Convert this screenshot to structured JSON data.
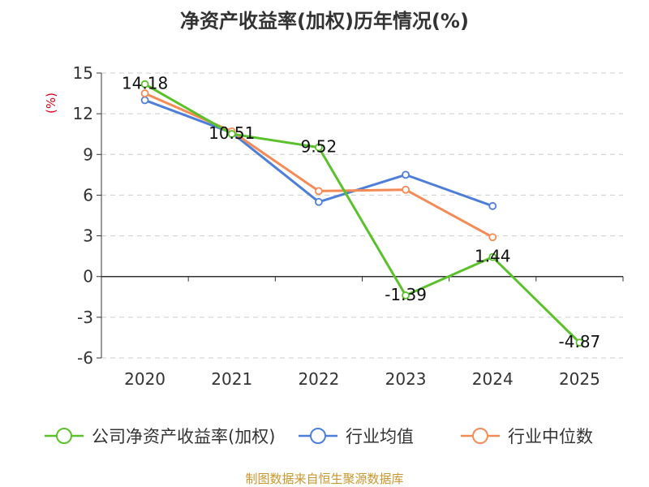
{
  "chart_data": {
    "type": "line",
    "title": "净资产收益率(加权)历年情况(%)",
    "ylabel": "(%)",
    "xlabel": "",
    "categories": [
      "2020",
      "2021",
      "2022",
      "2023",
      "2024",
      "2025"
    ],
    "yticks": [
      "15",
      "12",
      "9",
      "6",
      "3",
      "0",
      "-3",
      "-6"
    ],
    "ylim": [
      -6,
      15
    ],
    "grid": true,
    "legend_position": "bottom",
    "series": [
      {
        "name": "公司净资产收益率(加权)",
        "color": "#5bc12b",
        "values": [
          14.18,
          10.51,
          9.52,
          -1.39,
          1.44,
          -4.87
        ],
        "labels": [
          "14.18",
          "10.51",
          "9.52",
          "-1.39",
          "1.44",
          "-4.87"
        ]
      },
      {
        "name": "行业均值",
        "color": "#4e7fd8",
        "values": [
          13.0,
          10.6,
          5.5,
          7.5,
          5.2,
          null
        ]
      },
      {
        "name": "行业中位数",
        "color": "#f48b57",
        "values": [
          13.5,
          10.7,
          6.3,
          6.4,
          2.9,
          null
        ]
      }
    ],
    "source": "制图数据来自恒生聚源数据库"
  }
}
